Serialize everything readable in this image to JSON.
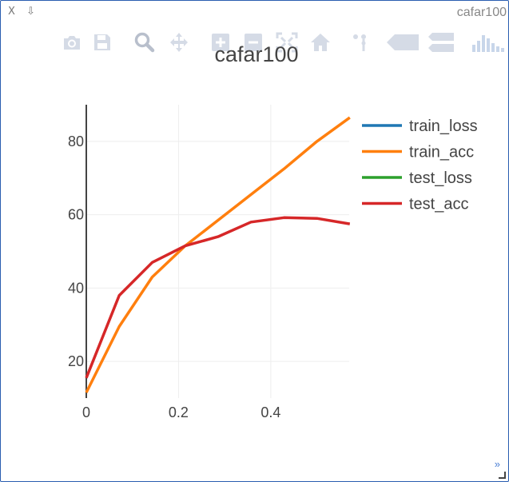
{
  "window": {
    "title": "cafar100",
    "close_label": "X",
    "download_label": "⇩",
    "expand_label": "»"
  },
  "modebar": {
    "icons": [
      "camera-icon",
      "save-icon",
      "zoom-icon",
      "pan-icon",
      "zoom-in-icon",
      "zoom-out-icon",
      "autoscale-icon",
      "home-icon",
      "spike-lines-icon",
      "hover-closest-icon",
      "hover-compare-icon",
      "plotly-logo-icon"
    ]
  },
  "colors": {
    "train_loss": "#1f77b4",
    "train_acc": "#ff7f0e",
    "test_loss": "#2ca02c",
    "test_acc": "#d62728",
    "grid": "#eeeeee",
    "axis": "#444444",
    "modebar_icon": "#d5dbe6"
  },
  "chart_data": {
    "type": "line",
    "title": "cafar100",
    "xlabel": "",
    "ylabel": "",
    "xlim": [
      0,
      0.57
    ],
    "ylim": [
      10,
      90
    ],
    "xticks": [
      0,
      0.2,
      0.4
    ],
    "xtick_labels": [
      "0",
      "0.2",
      "0.4"
    ],
    "yticks": [
      20,
      40,
      60,
      80
    ],
    "ytick_labels": [
      "20",
      "40",
      "60",
      "80"
    ],
    "grid": true,
    "legend_position": "right",
    "series": [
      {
        "name": "train_loss",
        "x": [],
        "y": []
      },
      {
        "name": "train_acc",
        "x": [
          0,
          0.0714,
          0.1429,
          0.2143,
          0.2857,
          0.3571,
          0.4286,
          0.5,
          0.5714
        ],
        "y": [
          11.5,
          29.5,
          43,
          51.5,
          58.5,
          65.5,
          72.5,
          80,
          86.5
        ]
      },
      {
        "name": "test_loss",
        "x": [],
        "y": []
      },
      {
        "name": "test_acc",
        "x": [
          0,
          0.0714,
          0.1429,
          0.2143,
          0.2857,
          0.3571,
          0.4286,
          0.5,
          0.5714
        ],
        "y": [
          15.5,
          38,
          47,
          51.5,
          54,
          58,
          59.2,
          59,
          57.5
        ]
      }
    ]
  }
}
